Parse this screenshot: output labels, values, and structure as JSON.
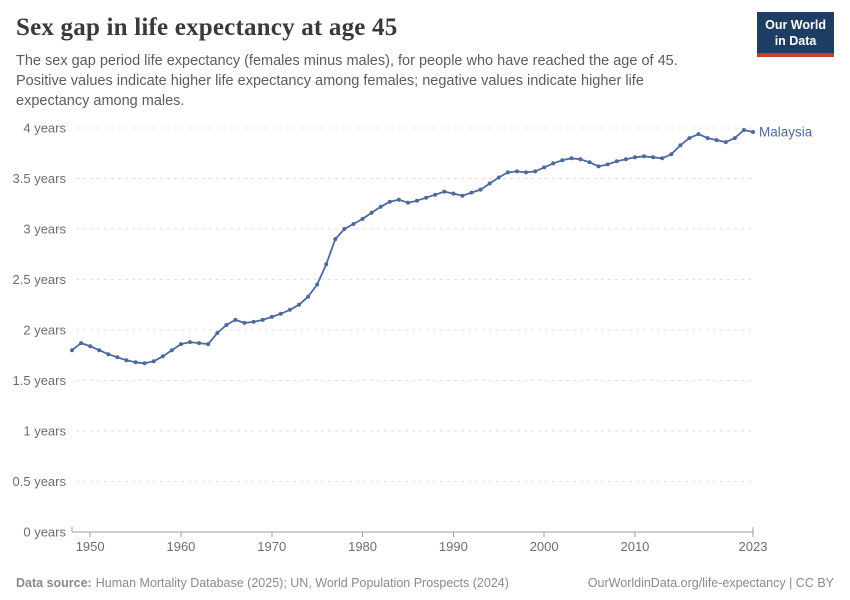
{
  "header": {
    "title": "Sex gap in life expectancy at age 45",
    "subtitle": "The sex gap period life expectancy (females minus males), for people who have reached the age of 45. Positive values indicate higher life expectancy among females; negative values indicate higher life expectancy among males."
  },
  "logo": {
    "line1": "Our World",
    "line2": "in Data",
    "background_color": "#1d3d63",
    "underline_color": "#cc3a33"
  },
  "chart_data": {
    "type": "line",
    "title": "Sex gap in life expectancy at age 45",
    "entity_label": "Malaysia",
    "x_years": {
      "start": 1948,
      "end": 2023,
      "step": 1
    },
    "values": [
      1.8,
      1.87,
      1.84,
      1.8,
      1.76,
      1.73,
      1.7,
      1.68,
      1.67,
      1.69,
      1.74,
      1.8,
      1.86,
      1.88,
      1.87,
      1.86,
      1.97,
      2.05,
      2.1,
      2.07,
      2.08,
      2.1,
      2.13,
      2.16,
      2.2,
      2.25,
      2.33,
      2.45,
      2.65,
      2.9,
      3.0,
      3.05,
      3.1,
      3.16,
      3.22,
      3.27,
      3.29,
      3.26,
      3.28,
      3.31,
      3.34,
      3.37,
      3.35,
      3.33,
      3.36,
      3.39,
      3.45,
      3.51,
      3.56,
      3.57,
      3.56,
      3.57,
      3.61,
      3.65,
      3.68,
      3.7,
      3.69,
      3.66,
      3.62,
      3.64,
      3.67,
      3.69,
      3.71,
      3.72,
      3.71,
      3.7,
      3.74,
      3.83,
      3.9,
      3.94,
      3.9,
      3.88,
      3.86,
      3.9,
      3.98,
      3.96
    ],
    "ylim": [
      0,
      4
    ],
    "y_ticks": [
      {
        "value": 0,
        "label": "0 years"
      },
      {
        "value": 0.5,
        "label": "0.5 years"
      },
      {
        "value": 1,
        "label": "1 years"
      },
      {
        "value": 1.5,
        "label": "1.5 years"
      },
      {
        "value": 2,
        "label": "2 years"
      },
      {
        "value": 2.5,
        "label": "2.5 years"
      },
      {
        "value": 3,
        "label": "3 years"
      },
      {
        "value": 3.5,
        "label": "3.5 years"
      },
      {
        "value": 4,
        "label": "4 years"
      }
    ],
    "x_ticks": [
      {
        "value": 1950,
        "label": "1950"
      },
      {
        "value": 1960,
        "label": "1960"
      },
      {
        "value": 1970,
        "label": "1970"
      },
      {
        "value": 1980,
        "label": "1980"
      },
      {
        "value": 1990,
        "label": "1990"
      },
      {
        "value": 2000,
        "label": "2000"
      },
      {
        "value": 2010,
        "label": "2010"
      },
      {
        "value": 2023,
        "label": "2023"
      }
    ],
    "grid": true,
    "legend_position": "end-of-line",
    "colors": {
      "line": "#4c6a9c",
      "grid": "#e0e0e0",
      "axis": "#9e9e9e",
      "tick_label": "#6d6d6d"
    }
  },
  "footer": {
    "source_label": "Data source:",
    "source_text": "Human Mortality Database (2025); UN, World Population Prospects (2024)",
    "right_text": "OurWorldinData.org/life-expectancy | CC BY"
  }
}
